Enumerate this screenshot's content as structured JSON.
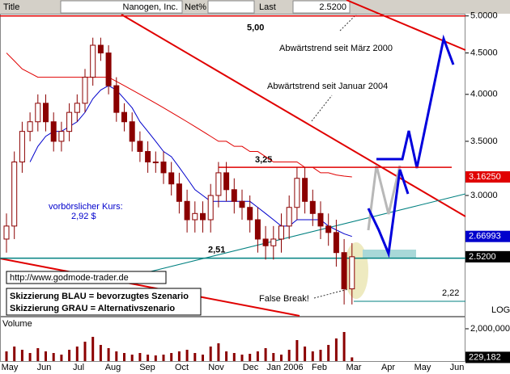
{
  "header": {
    "title_label": "Title",
    "name": "Nanogen, Inc.",
    "net_label": "Net%",
    "last_label": "Last",
    "last_value": "2.5200"
  },
  "chart_data": {
    "type": "candlestick",
    "log": true,
    "ylim": [
      2.13,
      5.02
    ],
    "yticks": [
      {
        "value": 5,
        "label": "5.0000"
      },
      {
        "value": 4.5,
        "label": "4.5000"
      },
      {
        "value": 4,
        "label": "4.0000"
      },
      {
        "value": 3.5,
        "label": "3.5000"
      },
      {
        "value": 3,
        "label": "3.0000"
      }
    ],
    "scale_label": "LOG",
    "months": [
      "May",
      "Jun",
      "Jul",
      "Aug",
      "Sep",
      "Oct",
      "Nov",
      "Dec",
      "Jan 2006",
      "Feb",
      "Mar",
      "Apr",
      "May",
      "Jun"
    ],
    "candles": {
      "color": "#8b0000",
      "open": [
        2.65,
        2.75,
        3.3,
        3.6,
        3.7,
        3.9,
        3.7,
        3.5,
        3.6,
        3.8,
        3.9,
        4.2,
        4.6,
        4.5,
        4.1,
        3.8,
        3.7,
        3.5,
        3.4,
        3.3,
        3.3,
        3.2,
        3.1,
        2.95,
        2.8,
        2.85,
        2.8,
        3.0,
        3.2,
        3.05,
        2.95,
        2.9,
        2.8,
        2.65,
        2.6,
        2.65,
        2.75,
        2.9,
        3.15,
        2.95,
        2.85,
        2.75,
        2.7,
        2.55,
        2.3
      ],
      "high": [
        2.85,
        3.4,
        3.7,
        3.8,
        4.0,
        4.0,
        3.8,
        3.7,
        3.9,
        4.0,
        4.3,
        4.7,
        4.7,
        4.6,
        4.2,
        3.9,
        3.8,
        3.6,
        3.5,
        3.4,
        3.4,
        3.3,
        3.2,
        3.05,
        2.95,
        2.95,
        3.1,
        3.3,
        3.3,
        3.15,
        3.05,
        3.0,
        2.9,
        2.75,
        2.75,
        2.85,
        3.0,
        3.25,
        3.25,
        3.05,
        2.95,
        2.85,
        2.8,
        2.65,
        2.62
      ],
      "low": [
        2.55,
        2.65,
        3.2,
        3.5,
        3.6,
        3.6,
        3.4,
        3.4,
        3.5,
        3.7,
        3.8,
        4.1,
        4.4,
        4.0,
        3.7,
        3.6,
        3.4,
        3.3,
        3.2,
        3.2,
        3.1,
        3.0,
        2.85,
        2.7,
        2.7,
        2.7,
        2.7,
        2.9,
        2.95,
        2.85,
        2.8,
        2.7,
        2.55,
        2.5,
        2.5,
        2.55,
        2.65,
        2.8,
        2.85,
        2.75,
        2.65,
        2.6,
        2.45,
        2.2,
        2.2
      ],
      "close": [
        2.75,
        3.3,
        3.6,
        3.7,
        3.9,
        3.7,
        3.5,
        3.6,
        3.8,
        3.9,
        4.2,
        4.6,
        4.5,
        4.1,
        3.8,
        3.7,
        3.5,
        3.4,
        3.3,
        3.3,
        3.2,
        3.1,
        2.95,
        2.8,
        2.85,
        2.8,
        3.0,
        3.2,
        3.05,
        2.95,
        2.9,
        2.8,
        2.65,
        2.6,
        2.65,
        2.75,
        2.9,
        3.15,
        2.95,
        2.85,
        2.75,
        2.7,
        2.55,
        2.3,
        2.52
      ],
      "last_label": "2.5200"
    },
    "overlays": [
      {
        "color": "#e00000",
        "values": [
          4.5,
          4.4,
          4.3,
          4.25,
          4.2,
          4.2,
          4.2,
          4.2,
          4.2,
          4.2,
          4.2,
          4.2,
          4.2,
          4.2,
          4.15,
          4.1,
          4.05,
          4.0,
          3.95,
          3.9,
          3.85,
          3.8,
          3.75,
          3.7,
          3.65,
          3.6,
          3.55,
          3.5,
          3.5,
          3.45,
          3.45,
          3.4,
          3.4,
          3.35,
          3.3,
          3.3,
          3.3,
          3.3,
          3.25,
          3.25,
          3.2,
          3.2,
          3.18,
          3.17,
          3.1625
        ],
        "last_label": "3.16250"
      },
      {
        "color": "#0000cc",
        "values": [
          null,
          null,
          null,
          3.3,
          3.45,
          3.55,
          3.6,
          3.6,
          3.65,
          3.7,
          3.8,
          3.95,
          4.05,
          4.1,
          4.05,
          3.95,
          3.85,
          3.7,
          3.6,
          3.5,
          3.4,
          3.35,
          3.25,
          3.15,
          3.05,
          3.0,
          2.95,
          2.95,
          2.95,
          2.95,
          2.95,
          2.95,
          2.9,
          2.85,
          2.8,
          2.75,
          2.75,
          2.8,
          2.8,
          2.8,
          2.8,
          2.75,
          2.72,
          2.69,
          2.66993
        ],
        "last_label": "2.66993"
      }
    ],
    "levels": [
      {
        "value": 5.0,
        "label": "5,00",
        "color": "#e00000"
      },
      {
        "value": 3.25,
        "label": "3,25",
        "color": "#e00000"
      },
      {
        "value": 2.51,
        "label": "2,51",
        "color": "#008080"
      },
      {
        "value": 2.22,
        "label": "2,22",
        "color": "#008080"
      }
    ],
    "annotations": {
      "trend_2000": "Abwärtstrend seit März 2000",
      "trend_2004": "Abwärtstrend seit Januar 2004",
      "premarket": "vorbörslicher Kurs:",
      "premarket_price": "2,92 $",
      "url": "http://www.godmode-trader.de",
      "blue": "Skizzierung BLAU = bevorzugtes Szenario",
      "gray": "Skizzierung GRAU = Alternativszenario",
      "false_break": "False Break!"
    },
    "volume": {
      "title": "Volume",
      "color": "#8b0000",
      "ylim": [
        0,
        2600000
      ],
      "yticks": [
        {
          "value": 2000000,
          "label": "2,000,000"
        }
      ],
      "values": [
        600000,
        900000,
        700000,
        500000,
        800000,
        600000,
        500000,
        400000,
        700000,
        900000,
        1200000,
        1500000,
        1000000,
        800000,
        600000,
        500000,
        400000,
        500000,
        400000,
        350000,
        400000,
        500000,
        600000,
        700000,
        500000,
        400000,
        900000,
        1100000,
        600000,
        500000,
        400000,
        450000,
        600000,
        800000,
        500000,
        400000,
        700000,
        1300000,
        900000,
        600000,
        700000,
        1000000,
        1400000,
        1800000,
        229182
      ],
      "last_label": "229,182"
    }
  }
}
